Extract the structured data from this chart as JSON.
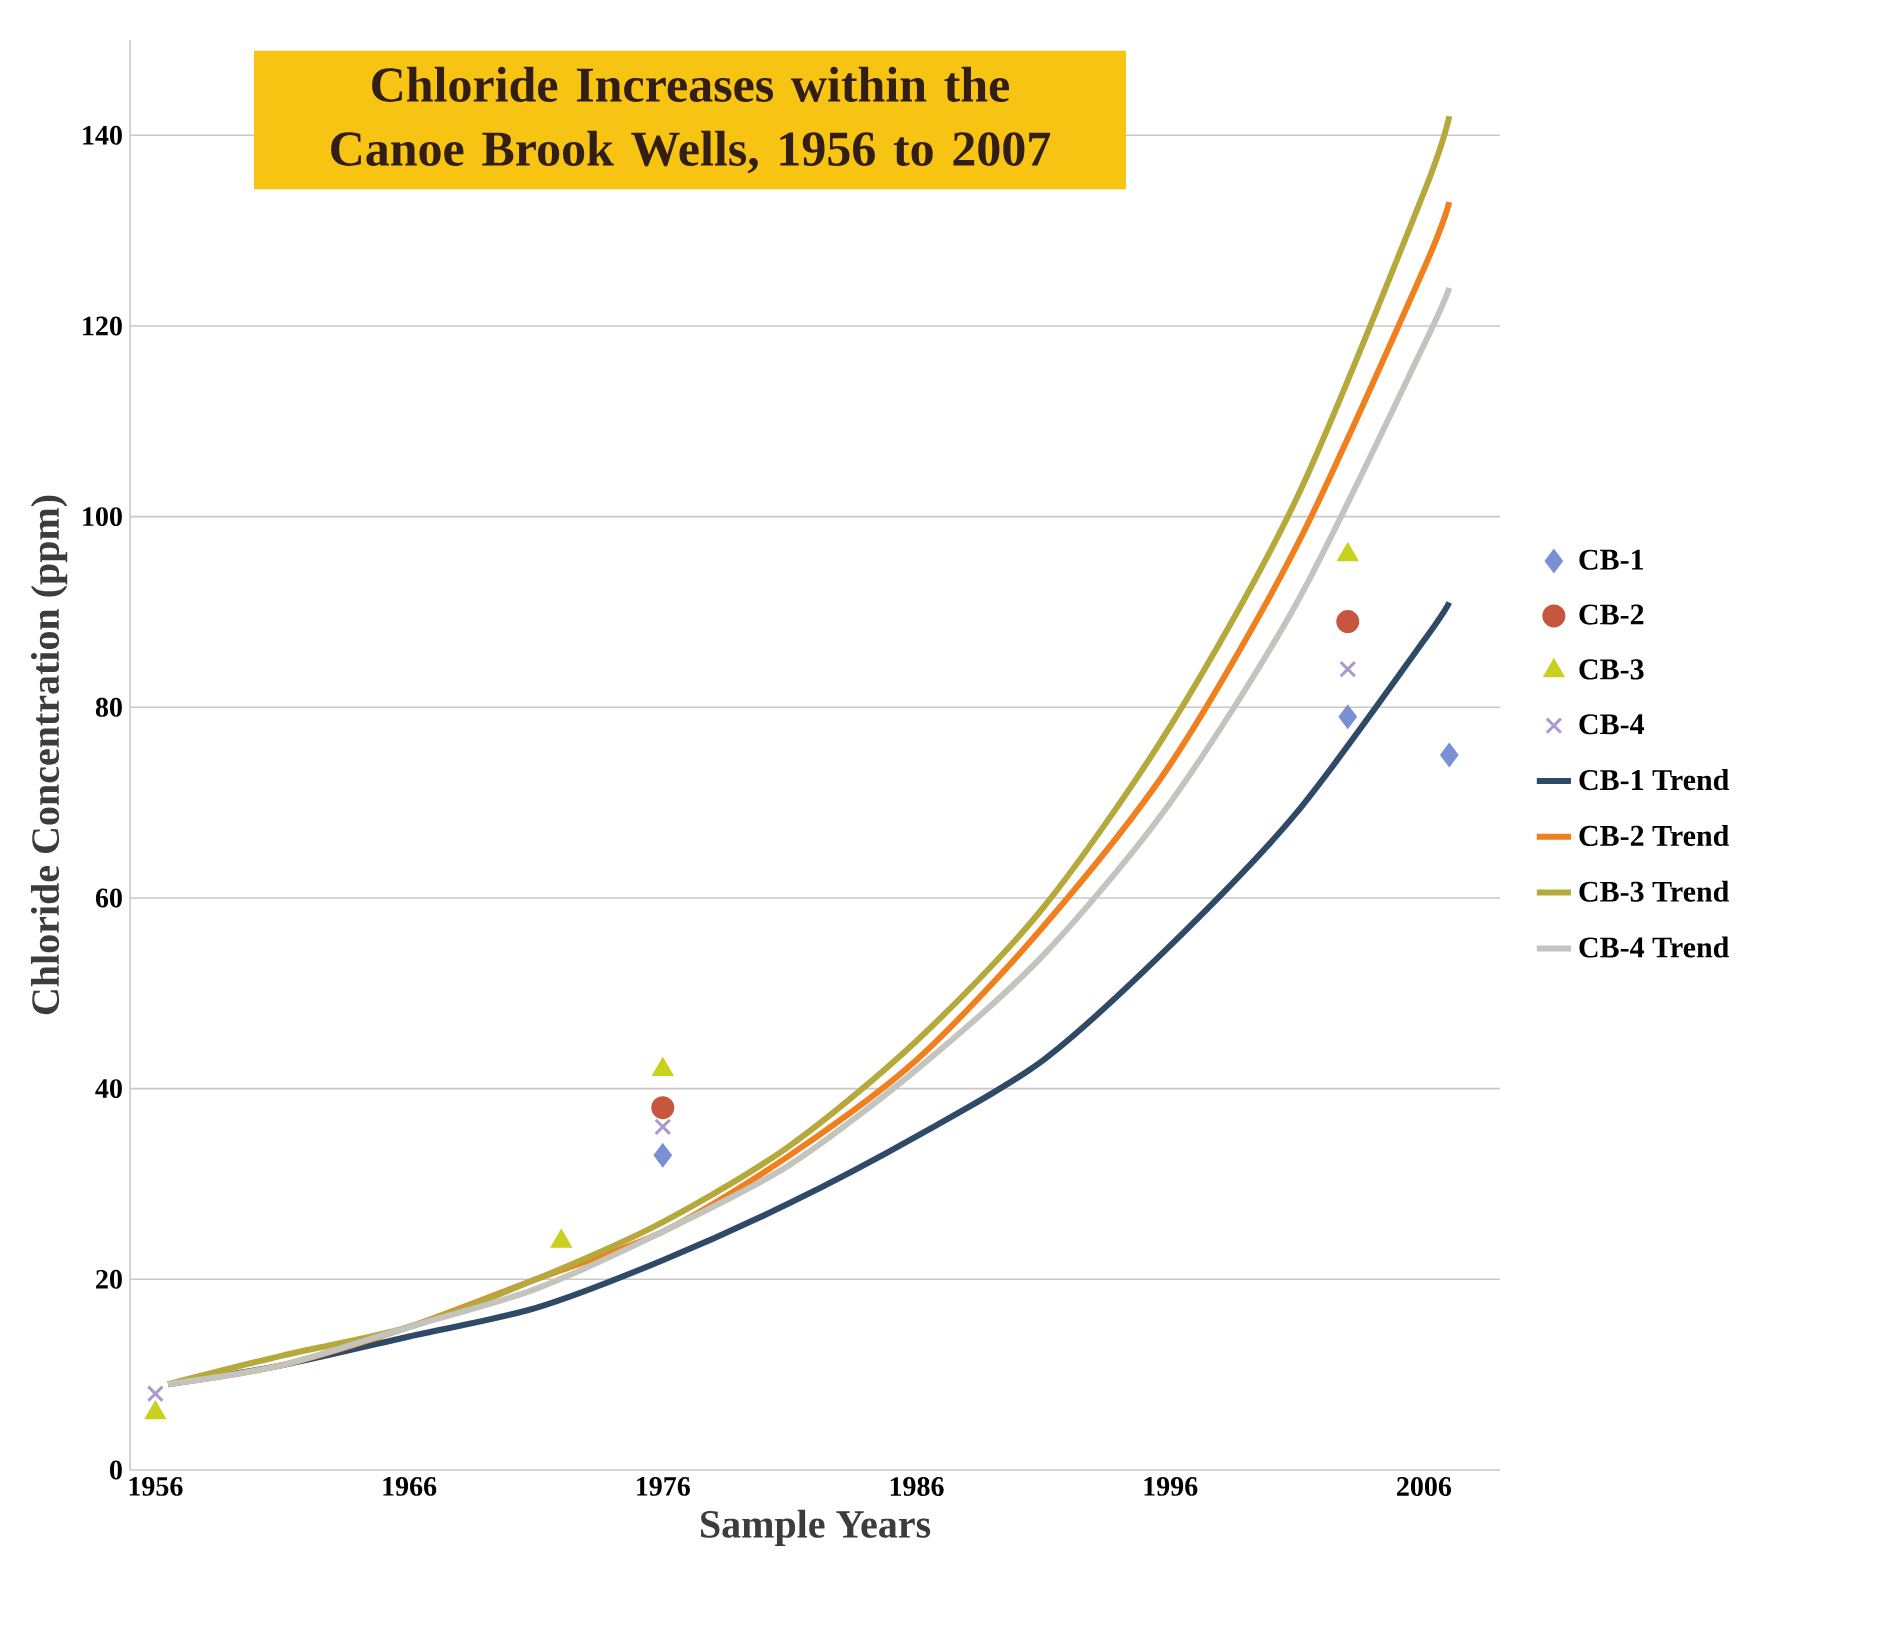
{
  "chart_data": {
    "type": "scatter",
    "title": "Chloride Increases within the Canoe Brook Wells, 1956 to 2007",
    "xlabel": "Sample Years",
    "ylabel": "Chloride Concentration (ppm)",
    "xlim": [
      1955,
      2009
    ],
    "xticks": [
      1956,
      1966,
      1976,
      1986,
      1996,
      2006
    ],
    "ylim": [
      0,
      150
    ],
    "yticks": [
      0,
      20,
      40,
      60,
      80,
      100,
      120,
      140
    ],
    "grid": "y",
    "legend": "right",
    "series": [
      {
        "name": "CB-1",
        "color": "#7b8fd4",
        "marker": "diamond",
        "x": [
          1976,
          2003,
          2007
        ],
        "values": [
          33,
          79,
          75
        ]
      },
      {
        "name": "CB-2",
        "color": "#c8553d",
        "marker": "circle",
        "x": [
          1976,
          2003
        ],
        "values": [
          38,
          89
        ]
      },
      {
        "name": "CB-3",
        "color": "#c8d21e",
        "marker": "triangle",
        "x": [
          1956,
          1972,
          1976,
          2003
        ],
        "values": [
          6,
          24,
          42,
          96
        ]
      },
      {
        "name": "CB-4",
        "color": "#a89ad0",
        "marker": "cross",
        "x": [
          1956,
          1976,
          2003
        ],
        "values": [
          8,
          36,
          84
        ]
      },
      {
        "name": "CB-1 Trend",
        "type": "line",
        "color": "#2e4a66",
        "x": [
          1956.5,
          1961,
          1966,
          1971,
          1976,
          1981,
          1986,
          1991,
          1996,
          2001,
          2006,
          2007
        ],
        "values": [
          9,
          11,
          14,
          17,
          22,
          28,
          35,
          43,
          55,
          69,
          87,
          91
        ]
      },
      {
        "name": "CB-2 Trend",
        "type": "line",
        "color": "#f07f1e",
        "x": [
          1956.5,
          1961,
          1966,
          1971,
          1976,
          1981,
          1986,
          1991,
          1996,
          2001,
          2006,
          2007
        ],
        "values": [
          9,
          11,
          15,
          20,
          25,
          33,
          43,
          57,
          74,
          97,
          126,
          133
        ]
      },
      {
        "name": "CB-3 Trend",
        "type": "line",
        "color": "#b5a93c",
        "x": [
          1956.5,
          1961,
          1966,
          1971,
          1976,
          1981,
          1986,
          1991,
          1996,
          2001,
          2006,
          2007
        ],
        "values": [
          9,
          12,
          15,
          20,
          26,
          34,
          45,
          59,
          78,
          102,
          134,
          142
        ]
      },
      {
        "name": "CB-4 Trend",
        "type": "line",
        "color": "#c4c4be",
        "x": [
          1956.5,
          1961,
          1966,
          1971,
          1976,
          1981,
          1986,
          1991,
          1996,
          2001,
          2006,
          2007
        ],
        "values": [
          9,
          11,
          15,
          19,
          25,
          32,
          42,
          54,
          70,
          91,
          118,
          124
        ]
      }
    ]
  }
}
